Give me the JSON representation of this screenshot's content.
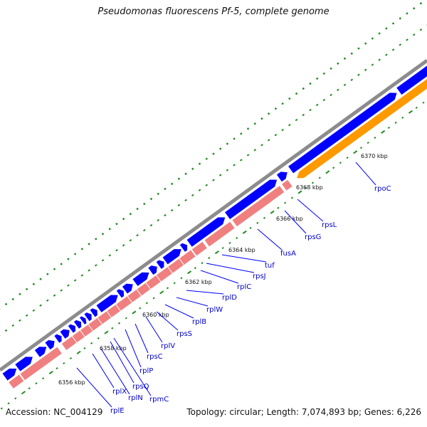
{
  "title": "Pseudomonas fluorescens Pf-5, complete genome",
  "footer": {
    "accession": "Accession: NC_004129",
    "summary": "Topology: circular; Length: 7,074,893 bp; Genes: 6,226"
  },
  "colors": {
    "backbone": "#8c8c8c",
    "forward_gene": "#0000ff",
    "reverse_gene": "#f08080",
    "rRNA_gene": "#ff9900",
    "gc_marks": "#228b22",
    "label_line": "#0000ff"
  },
  "ticks": [
    {
      "label": "6356 kbp"
    },
    {
      "label": "6358 kbp"
    },
    {
      "label": "6360 kbp"
    },
    {
      "label": "6362 kbp"
    },
    {
      "label": "6364 kbp"
    },
    {
      "label": "6366 kbp"
    },
    {
      "label": "6368 kbp"
    },
    {
      "label": "6370 kbp"
    }
  ],
  "genes": [
    {
      "name": "rplE"
    },
    {
      "name": "rplX"
    },
    {
      "name": "rplN"
    },
    {
      "name": "rpsQ"
    },
    {
      "name": "rpmC"
    },
    {
      "name": "rplP"
    },
    {
      "name": "rpsC"
    },
    {
      "name": "rplV"
    },
    {
      "name": "rpsS"
    },
    {
      "name": "rplB"
    },
    {
      "name": "rplW"
    },
    {
      "name": "rplD"
    },
    {
      "name": "rplC"
    },
    {
      "name": "rpsJ"
    },
    {
      "name": "tuf"
    },
    {
      "name": "fusA"
    },
    {
      "name": "rpsG"
    },
    {
      "name": "rpsL"
    },
    {
      "name": "rpoC"
    }
  ]
}
